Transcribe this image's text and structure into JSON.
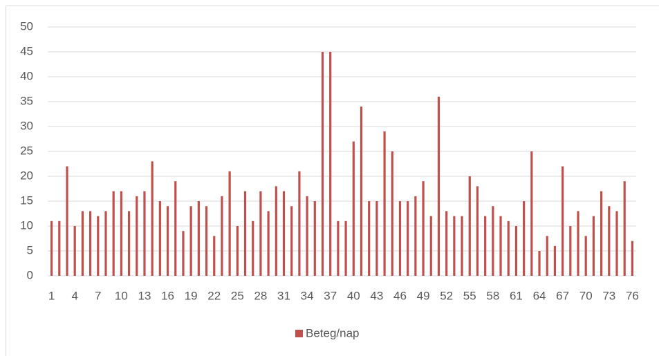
{
  "chart_data": {
    "type": "bar",
    "categories": [
      "1",
      null,
      null,
      "4",
      null,
      null,
      "7",
      null,
      null,
      "10",
      null,
      null,
      "13",
      null,
      null,
      "16",
      null,
      null,
      "19",
      null,
      null,
      "22",
      null,
      null,
      "25",
      null,
      null,
      "28",
      null,
      null,
      "31",
      null,
      null,
      "34",
      null,
      null,
      "37",
      null,
      null,
      "40",
      null,
      null,
      "43",
      null,
      null,
      "46",
      null,
      null,
      "49",
      null,
      null,
      "52",
      null,
      null,
      "55",
      null,
      null,
      "58",
      null,
      null,
      "61",
      null,
      null,
      "64",
      null,
      null,
      "67",
      null,
      null,
      "70",
      null,
      null,
      "73",
      null,
      null,
      "76"
    ],
    "series": [
      {
        "name": "Beteg/nap",
        "color": "#c0504d",
        "values": [
          11,
          11,
          22,
          10,
          13,
          13,
          12,
          13,
          17,
          17,
          13,
          16,
          17,
          23,
          15,
          14,
          19,
          9,
          14,
          15,
          14,
          8,
          16,
          21,
          10,
          17,
          11,
          17,
          13,
          18,
          17,
          14,
          21,
          16,
          15,
          45,
          45,
          11,
          11,
          27,
          34,
          15,
          15,
          29,
          25,
          15,
          15,
          16,
          19,
          12,
          36,
          13,
          12,
          12,
          20,
          18,
          12,
          14,
          12,
          11,
          10,
          15,
          25,
          5,
          8,
          6,
          22,
          10,
          13,
          8,
          12,
          17,
          14,
          13,
          19,
          7
        ]
      }
    ],
    "ylim": [
      0,
      50
    ],
    "yticks": [
      0,
      5,
      10,
      15,
      20,
      25,
      30,
      35,
      40,
      45,
      50
    ],
    "grid": true,
    "legend": "bottom"
  }
}
